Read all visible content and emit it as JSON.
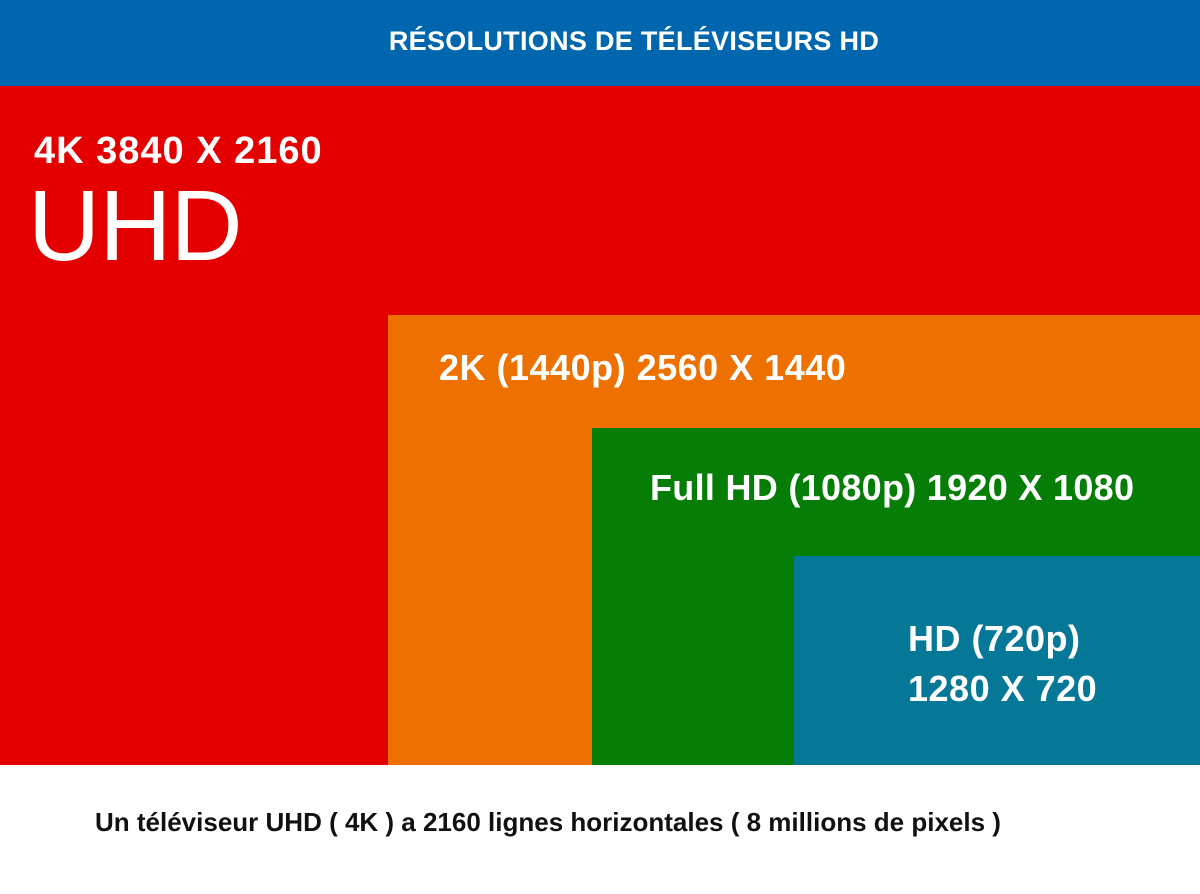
{
  "header": {
    "title": "RÉSOLUTIONS DE TÉLÉVISEURS HD"
  },
  "resolutions": [
    {
      "id": "4k",
      "resolution_text": "4K   3840 X 2160",
      "name": "UHD",
      "color": "#e50000"
    },
    {
      "id": "2k",
      "resolution_text": "2K  (1440p) 2560 X 1440",
      "color": "#ee7100"
    },
    {
      "id": "fhd",
      "resolution_text": "Full HD  (1080p) 1920 X 1080",
      "color": "#057d07"
    },
    {
      "id": "hd",
      "line1": "HD  (720p)",
      "line2": "1280 X 720",
      "color": "#047896"
    }
  ],
  "footer": {
    "caption": "Un téléviseur UHD ( 4K ) a 2160 lignes horizontales  ( 8 millions de pixels )"
  },
  "colors": {
    "banner": "#0066ad"
  }
}
